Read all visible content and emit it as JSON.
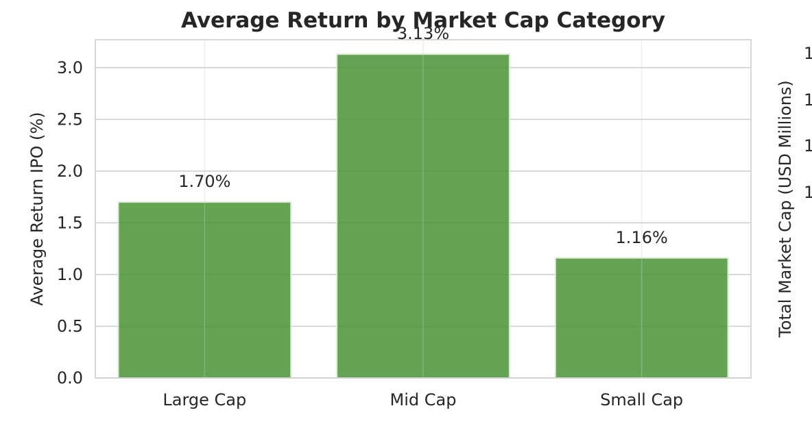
{
  "chart_data": {
    "type": "bar",
    "title": "Average Return by Market Cap Category",
    "xlabel": "",
    "ylabel": "Average Return IPO (%)",
    "y2label": "Total Market Cap (USD Millions)",
    "y2_tick_labels": [
      "1",
      "1",
      "1",
      "1"
    ],
    "categories": [
      "Large Cap",
      "Mid Cap",
      "Small Cap"
    ],
    "values": [
      1.7,
      3.13,
      1.16
    ],
    "data_labels": [
      "1.70%",
      "3.13%",
      "1.16%"
    ],
    "ylim": [
      0,
      3.27
    ],
    "yticks": [
      0.0,
      0.5,
      1.0,
      1.5,
      2.0,
      2.5,
      3.0
    ],
    "ytick_labels": [
      "0.0",
      "0.5",
      "1.0",
      "1.5",
      "2.0",
      "2.5",
      "3.0"
    ],
    "grid": true,
    "colors": {
      "bar": "#4a9336",
      "bar_edge": "#d9ead3",
      "grid": "#cccccc",
      "axis": "#bfbfbf",
      "text": "#262626"
    }
  }
}
